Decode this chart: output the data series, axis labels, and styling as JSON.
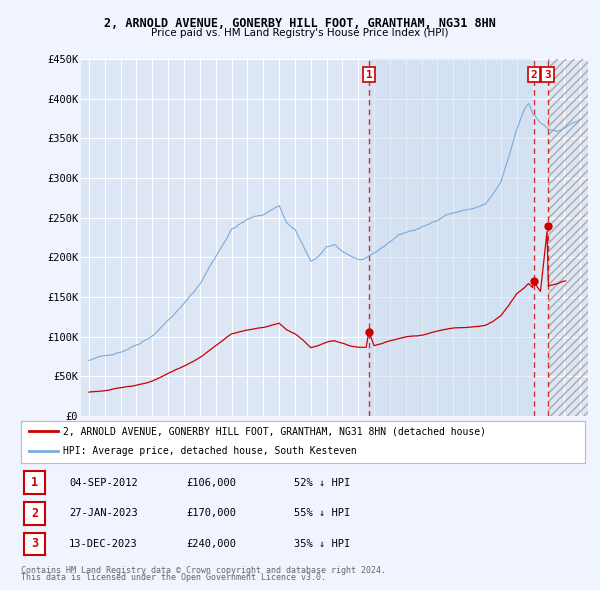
{
  "title": "2, ARNOLD AVENUE, GONERBY HILL FOOT, GRANTHAM, NG31 8HN",
  "subtitle": "Price paid vs. HM Land Registry's House Price Index (HPI)",
  "ylim": [
    0,
    450000
  ],
  "yticks": [
    0,
    50000,
    100000,
    150000,
    200000,
    250000,
    300000,
    350000,
    400000,
    450000
  ],
  "ytick_labels": [
    "£0",
    "£50K",
    "£100K",
    "£150K",
    "£200K",
    "£250K",
    "£300K",
    "£350K",
    "£400K",
    "£450K"
  ],
  "xlim_start": 1994.5,
  "xlim_end": 2026.5,
  "background_color": "#f0f4ff",
  "plot_bg_color": "#dce6f5",
  "grid_color": "#ffffff",
  "sale_color": "#cc0000",
  "hpi_color": "#7aabdb",
  "sale_label": "2, ARNOLD AVENUE, GONERBY HILL FOOT, GRANTHAM, NG31 8HN (detached house)",
  "hpi_label": "HPI: Average price, detached house, South Kesteven",
  "shade_start": 2012.67,
  "shade_end": 2023.08,
  "hatch_start": 2024.0,
  "transactions": [
    {
      "date_num": 2012.67,
      "price": 106000,
      "label": "1",
      "pct": "52%",
      "date_str": "04-SEP-2012"
    },
    {
      "date_num": 2023.08,
      "price": 170000,
      "label": "2",
      "pct": "55%",
      "date_str": "27-JAN-2023"
    },
    {
      "date_num": 2023.95,
      "price": 240000,
      "label": "3",
      "pct": "35%",
      "date_str": "13-DEC-2023"
    }
  ],
  "footer_line1": "Contains HM Land Registry data © Crown copyright and database right 2024.",
  "footer_line2": "This data is licensed under the Open Government Licence v3.0."
}
